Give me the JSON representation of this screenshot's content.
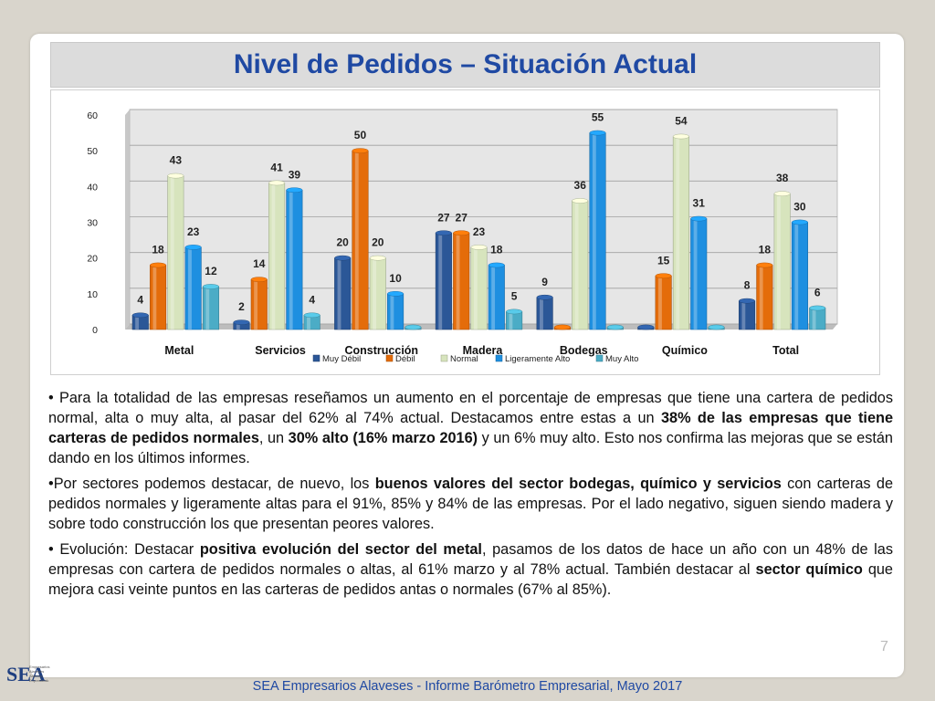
{
  "slide": {
    "title": "Nivel de Pedidos – Situación Actual",
    "page_number": "7",
    "footer": "SEA Empresarios Alaveses  -  Informe Barómetro Empresarial, Mayo 2017",
    "logo": {
      "mark": "SEA",
      "lines": [
        "Empresarios",
        "Alaveses",
        "Arabako",
        "Enpresariak"
      ]
    }
  },
  "chart_data": {
    "type": "bar",
    "categories": [
      "Metal",
      "Servicios",
      "Construcción",
      "Madera",
      "Bodegas",
      "Químico",
      "Total"
    ],
    "series": [
      {
        "name": "Muy Débil",
        "color": "#2b5797",
        "values": [
          4,
          2,
          20,
          27,
          9,
          0,
          8
        ],
        "labels": [
          "4",
          "2",
          "20",
          "27",
          "9",
          "",
          "8"
        ]
      },
      {
        "name": "Débil",
        "color": "#e46c0a",
        "values": [
          18,
          14,
          50,
          27,
          0,
          15,
          18
        ],
        "labels": [
          "18",
          "14",
          "50",
          "27",
          "",
          "15",
          "18"
        ]
      },
      {
        "name": "Normal",
        "color": "#d7e4bd",
        "values": [
          43,
          41,
          20,
          23,
          36,
          54,
          38
        ],
        "labels": [
          "43",
          "41",
          "20",
          "23",
          "36",
          "54",
          "38"
        ]
      },
      {
        "name": "Ligeramente Alto",
        "color": "#1e8fe0",
        "values": [
          23,
          39,
          10,
          18,
          55,
          31,
          30
        ],
        "labels": [
          "23",
          "39",
          "10",
          "18",
          "55",
          "31",
          "30"
        ]
      },
      {
        "name": "Muy Alto",
        "color": "#4bacc6",
        "values": [
          12,
          4,
          0,
          5,
          0,
          0,
          6
        ],
        "labels": [
          "12",
          "4",
          "",
          "5",
          "",
          "",
          "6"
        ]
      }
    ],
    "ylim": [
      0,
      60
    ],
    "yticks": [
      "0",
      "10",
      "20",
      "30",
      "40",
      "50",
      "60"
    ],
    "grid": true,
    "legend_position": "bottom"
  },
  "paragraphs": [
    [
      {
        "t": "• Para la totalidad de las empresas reseñamos un aumento en el porcentaje de empresas que tiene una cartera de pedidos normal, alta o muy alta, al pasar del 62% al 74% actual. Destacamos entre estas a un "
      },
      {
        "t": "38% de las empresas que tiene carteras de pedidos normales",
        "b": true
      },
      {
        "t": ", un "
      },
      {
        "t": "30% alto (16% marzo 2016)",
        "b": true
      },
      {
        "t": " y un 6% muy alto. Esto nos confirma las mejoras que se están dando en los últimos informes."
      }
    ],
    [
      {
        "t": "•Por sectores podemos destacar, de nuevo,  los "
      },
      {
        "t": "buenos valores del sector bodegas, químico y servicios",
        "b": true
      },
      {
        "t": " con carteras de pedidos normales y ligeramente altas para el 91%, 85% y 84% de las empresas. Por el lado negativo, siguen siendo madera y sobre todo construcción los que presentan peores valores."
      }
    ],
    [
      {
        "t": "• Evolución: Destacar "
      },
      {
        "t": "positiva evolución del sector del metal",
        "b": true
      },
      {
        "t": ", pasamos de los datos de hace un año con un 48% de las empresas con cartera de pedidos normales o altas, al 61% marzo y al 78% actual. También destacar al "
      },
      {
        "t": "sector químico",
        "b": true
      },
      {
        "t": " que mejora casi veinte puntos en las carteras de pedidos antas o normales (67% al 85%)."
      }
    ]
  ]
}
